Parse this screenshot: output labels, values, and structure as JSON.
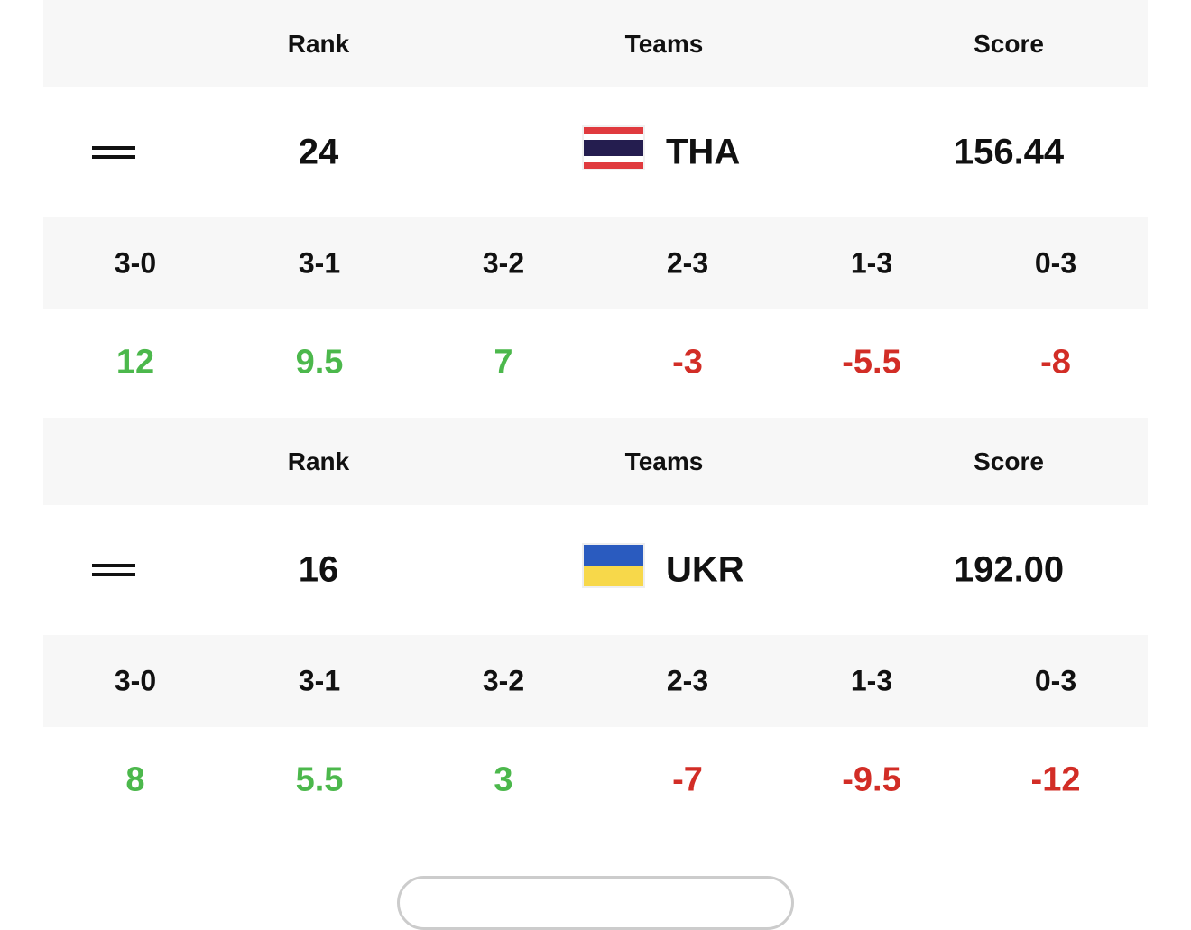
{
  "blocks": [
    {
      "header": {
        "rank": "Rank",
        "teams": "Teams",
        "score": "Score"
      },
      "rank": "24",
      "team": "THA",
      "score": "156.44",
      "results": [
        "3-0",
        "3-1",
        "3-2",
        "2-3",
        "1-3",
        "0-3"
      ],
      "points": [
        "12",
        "9.5",
        "7",
        "-3",
        "-5.5",
        "-8"
      ]
    },
    {
      "header": {
        "rank": "Rank",
        "teams": "Teams",
        "score": "Score"
      },
      "rank": "16",
      "team": "UKR",
      "score": "192.00",
      "results": [
        "3-0",
        "3-1",
        "3-2",
        "2-3",
        "1-3",
        "0-3"
      ],
      "points": [
        "8",
        "5.5",
        "3",
        "-7",
        "-9.5",
        "-12"
      ]
    }
  ]
}
